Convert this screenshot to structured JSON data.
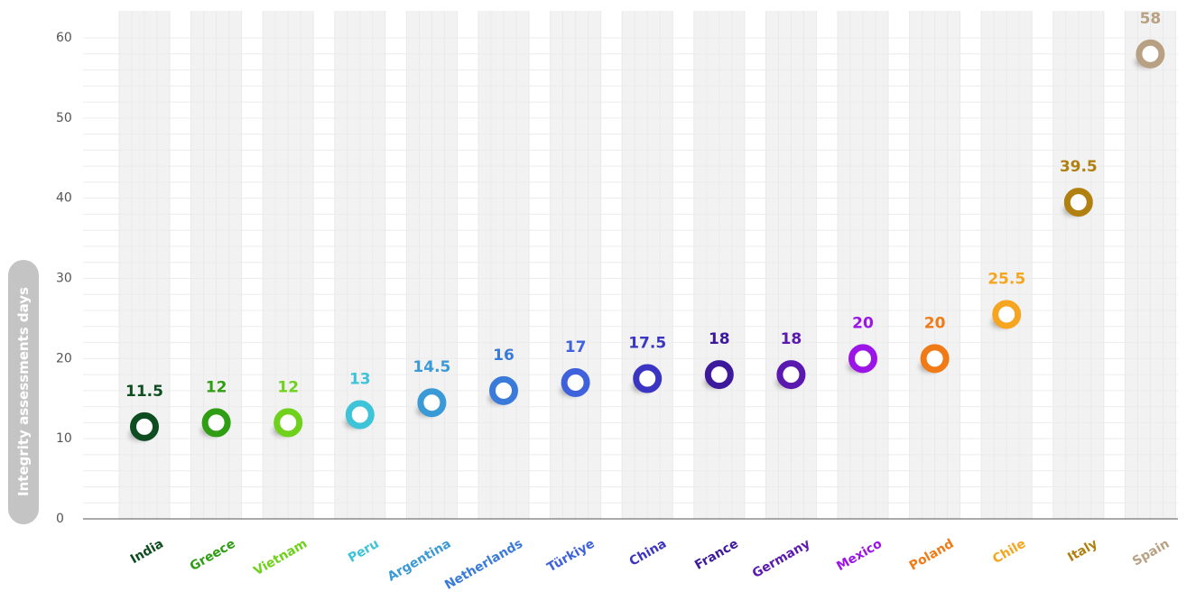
{
  "chart_data": {
    "type": "scatter",
    "ylabel": "Integrity assessments days",
    "ylim": [
      0,
      60
    ],
    "yticks": [
      0,
      10,
      20,
      30,
      40,
      50,
      60
    ],
    "grid": true,
    "categories": [
      "India",
      "Greece",
      "Vietnam",
      "Peru",
      "Argentina",
      "Netherlands",
      "Türkiye",
      "China",
      "France",
      "Germany",
      "Mexico",
      "Poland",
      "Chile",
      "Italy",
      "Spain"
    ],
    "values": [
      11.5,
      12,
      12,
      13,
      14.5,
      16,
      17,
      17.5,
      18,
      18,
      20,
      20,
      25.5,
      39.5,
      58
    ],
    "labels": [
      "11.5",
      "12",
      "12",
      "13",
      "14.5",
      "16",
      "17",
      "17.5",
      "18",
      "18",
      "20",
      "20",
      "25.5",
      "39.5",
      "58"
    ],
    "colors": [
      "#0d4d1f",
      "#2f9e14",
      "#6fd11c",
      "#3ec3d9",
      "#3a9ad6",
      "#3a7ad8",
      "#3f62dc",
      "#3a36c2",
      "#3d1a9c",
      "#5a1ab0",
      "#9b16e6",
      "#f07a16",
      "#f5a51f",
      "#b08010",
      "#b8a083"
    ]
  }
}
